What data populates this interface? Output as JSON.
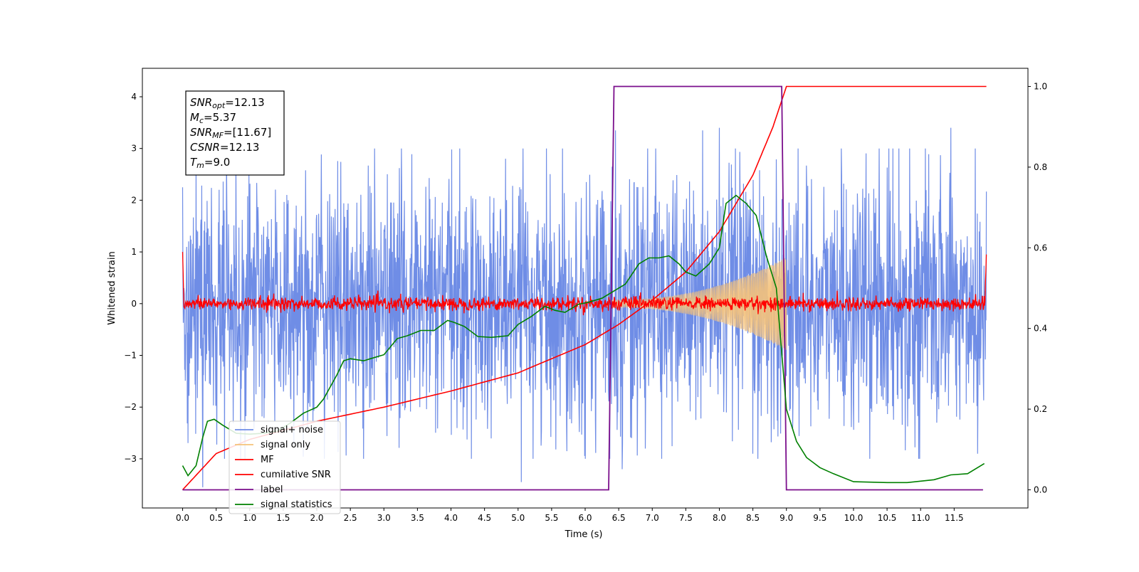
{
  "chart_data": {
    "type": "line",
    "title": "",
    "xlabel": "Time (s)",
    "ylabel": "Whitened strain",
    "xlim": [
      -0.6,
      12.6
    ],
    "ylim": [
      -3.95,
      4.55
    ],
    "y2lim": [
      -0.045,
      1.045
    ],
    "grid": false,
    "legend_position": "lower-left",
    "xticks": [
      0.0,
      0.5,
      1.0,
      1.5,
      2.0,
      2.5,
      3.0,
      3.5,
      4.0,
      4.5,
      5.0,
      5.5,
      6.0,
      6.5,
      7.0,
      7.5,
      8.0,
      8.5,
      9.0,
      9.5,
      10.0,
      10.5,
      11.0,
      11.5
    ],
    "xtick_labels": [
      "0.0",
      "0.5",
      "1.0",
      "1.5",
      "2.0",
      "2.5",
      "3.0",
      "3.5",
      "4.0",
      "4.5",
      "5.0",
      "5.5",
      "6.0",
      "6.5",
      "7.0",
      "7.5",
      "8.0",
      "8.5",
      "9.0",
      "9.5",
      "10.0",
      "10.5",
      "11.0",
      "11.5"
    ],
    "yticks": [
      -3,
      -2,
      -1,
      0,
      1,
      2,
      3,
      4
    ],
    "ytick_labels": [
      "−3",
      "−2",
      "−1",
      "0",
      "1",
      "2",
      "3",
      "4"
    ],
    "y2ticks": [
      0.0,
      0.2,
      0.4,
      0.6,
      0.8,
      1.0
    ],
    "y2tick_labels": [
      "0.0",
      "0.2",
      "0.4",
      "0.6",
      "0.8",
      "1.0"
    ],
    "annotation": [
      {
        "sym": "SNR",
        "sub": "opt",
        "val": "=12.13"
      },
      {
        "sym": "M",
        "sub": "c",
        "val": "=5.37"
      },
      {
        "sym": "SNR",
        "sub": "MF",
        "val": "=[11.67]"
      },
      {
        "sym": "CSNR",
        "sub": "",
        "val": "=12.13"
      },
      {
        "sym": "T",
        "sub": "m",
        "val": "=9.0"
      }
    ],
    "series": [
      {
        "name": "signal+ noise",
        "color": "#6f8de6",
        "axis": "left",
        "description": "whitened noisy strain, approx. between -3.5 and 3.4",
        "t_range": [
          0.0,
          11.98
        ],
        "amplitude_envelope": [
          -2.2,
          2.2
        ],
        "peaks": [
          {
            "t": 0.0,
            "y": 2.25
          },
          {
            "t": 0.3,
            "y": -3.55
          },
          {
            "t": 5.05,
            "y": -3.45
          },
          {
            "t": 6.45,
            "y": 3.35
          },
          {
            "t": 6.55,
            "y": -3.2
          },
          {
            "t": 7.05,
            "y": 3.0
          },
          {
            "t": 7.75,
            "y": 3.35
          },
          {
            "t": 8.0,
            "y": 3.4
          },
          {
            "t": 8.5,
            "y": -2.9
          },
          {
            "t": 11.45,
            "y": 3.4
          },
          {
            "t": 11.85,
            "y": -2.9
          }
        ]
      },
      {
        "name": "signal only",
        "color": "#f5c27a",
        "axis": "left",
        "description": "chirp waveform growing from 6.4 s to merger at 9.0 s",
        "t_range": [
          6.4,
          9.0
        ],
        "amplitude_start": 0.07,
        "amplitude_end": 0.9
      },
      {
        "name": "MF",
        "color": "#ff0000",
        "axis": "left",
        "description": "matched-filter output, noisy around 0",
        "t_range": [
          0.0,
          11.98
        ],
        "amplitude": 0.12,
        "edge_values": {
          "start": 1.0,
          "end": 0.95
        }
      },
      {
        "name": "cumilative SNR",
        "color": "#ff0000",
        "axis": "right",
        "t": [
          0.0,
          0.5,
          1.0,
          2.0,
          3.0,
          4.0,
          5.0,
          6.0,
          6.5,
          7.0,
          7.5,
          8.0,
          8.5,
          8.8,
          9.0,
          9.02,
          11.98
        ],
        "values": [
          0.0,
          0.09,
          0.125,
          0.17,
          0.205,
          0.245,
          0.29,
          0.36,
          0.41,
          0.47,
          0.54,
          0.64,
          0.78,
          0.9,
          1.0,
          1.0,
          1.0
        ]
      },
      {
        "name": "label",
        "color": "#7b0f8c",
        "axis": "right",
        "t": [
          0.0,
          6.35,
          6.43,
          8.93,
          9.0,
          11.93
        ],
        "values": [
          0.0,
          0.0,
          1.0,
          1.0,
          0.0,
          0.0
        ]
      },
      {
        "name": "signal statistics",
        "color": "#008000",
        "axis": "right",
        "t": [
          0.0,
          0.08,
          0.2,
          0.3,
          0.37,
          0.47,
          0.6,
          0.8,
          1.0,
          1.2,
          1.4,
          1.6,
          1.8,
          2.0,
          2.1,
          2.2,
          2.3,
          2.4,
          2.5,
          2.7,
          2.8,
          3.0,
          3.2,
          3.35,
          3.55,
          3.75,
          3.95,
          4.05,
          4.2,
          4.4,
          4.6,
          4.85,
          5.0,
          5.2,
          5.4,
          5.55,
          5.7,
          5.9,
          6.05,
          6.25,
          6.4,
          6.6,
          6.8,
          6.95,
          7.1,
          7.25,
          7.4,
          7.5,
          7.65,
          7.85,
          8.0,
          8.1,
          8.25,
          8.4,
          8.55,
          8.7,
          8.85,
          9.0,
          9.15,
          9.3,
          9.5,
          9.7,
          10.0,
          10.5,
          10.8,
          11.2,
          11.45,
          11.7,
          11.95
        ],
        "values": [
          0.06,
          0.035,
          0.06,
          0.13,
          0.17,
          0.175,
          0.16,
          0.14,
          0.138,
          0.14,
          0.145,
          0.165,
          0.19,
          0.205,
          0.225,
          0.255,
          0.285,
          0.32,
          0.325,
          0.32,
          0.325,
          0.335,
          0.375,
          0.382,
          0.395,
          0.395,
          0.42,
          0.415,
          0.405,
          0.38,
          0.378,
          0.382,
          0.41,
          0.43,
          0.455,
          0.445,
          0.44,
          0.46,
          0.465,
          0.475,
          0.49,
          0.51,
          0.56,
          0.575,
          0.575,
          0.58,
          0.56,
          0.54,
          0.53,
          0.56,
          0.6,
          0.71,
          0.73,
          0.71,
          0.68,
          0.58,
          0.5,
          0.2,
          0.12,
          0.08,
          0.055,
          0.04,
          0.02,
          0.018,
          0.018,
          0.025,
          0.037,
          0.04,
          0.065
        ]
      }
    ]
  }
}
